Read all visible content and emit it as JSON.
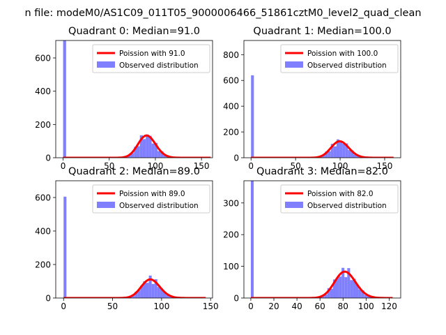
{
  "suptitle": "n file: modeM0/AS1C09_011T05_9000006466_51861cztM0_level2_quad_clean",
  "colors": {
    "fit_line": "#ff0000",
    "histogram": "#8080ff",
    "legend_edge": "#cccccc",
    "axis": "#000000"
  },
  "chart_data": [
    {
      "type": "bar",
      "title": "Quadrant 0: Median=91.0",
      "median": 91.0,
      "xlim": [
        -8,
        162
      ],
      "ylim": [
        0,
        705
      ],
      "xticks": [
        0,
        50,
        100,
        150
      ],
      "yticks": [
        0,
        200,
        400,
        600
      ],
      "legend": [
        "Poission with 91.0",
        "Observed distribution"
      ],
      "zero_bin": 705,
      "hist_range": [
        0,
        160
      ],
      "n_bins": 50,
      "poisson_mean": 91.0,
      "poisson_scale": 3.2
    },
    {
      "type": "bar",
      "title": "Quadrant 1: Median=100.0",
      "median": 100.0,
      "xlim": [
        -8,
        168
      ],
      "ylim": [
        0,
        910
      ],
      "xticks": [
        0,
        50,
        100,
        150
      ],
      "yticks": [
        0,
        200,
        400,
        600,
        800
      ],
      "legend": [
        "Poission with 100.0",
        "Observed distribution"
      ],
      "zero_bin": 640,
      "hist_range": [
        0,
        160
      ],
      "n_bins": 50,
      "poisson_mean": 100.0,
      "poisson_scale": 3.2
    },
    {
      "type": "bar",
      "title": "Quadrant 2: Median=89.0",
      "median": 89.0,
      "xlim": [
        -8,
        152
      ],
      "ylim": [
        0,
        700
      ],
      "xticks": [
        0,
        50,
        100,
        150
      ],
      "yticks": [
        0,
        200,
        400,
        600
      ],
      "legend": [
        "Poission with 89.0",
        "Observed distribution"
      ],
      "zero_bin": 605,
      "hist_range": [
        0,
        145
      ],
      "n_bins": 50,
      "poisson_mean": 89.0,
      "poisson_scale": 2.9
    },
    {
      "type": "bar",
      "title": "Quadrant 3: Median=82.0",
      "median": 82.0,
      "xlim": [
        -6,
        130
      ],
      "ylim": [
        0,
        370
      ],
      "xticks": [
        0,
        20,
        40,
        60,
        80,
        100,
        120
      ],
      "yticks": [
        0,
        100,
        200,
        300
      ],
      "legend": [
        "Poission with 82.0",
        "Observed distribution"
      ],
      "zero_bin": 370,
      "hist_range": [
        0,
        123
      ],
      "n_bins": 50,
      "poisson_mean": 82.0,
      "poisson_scale": 2.46
    }
  ]
}
